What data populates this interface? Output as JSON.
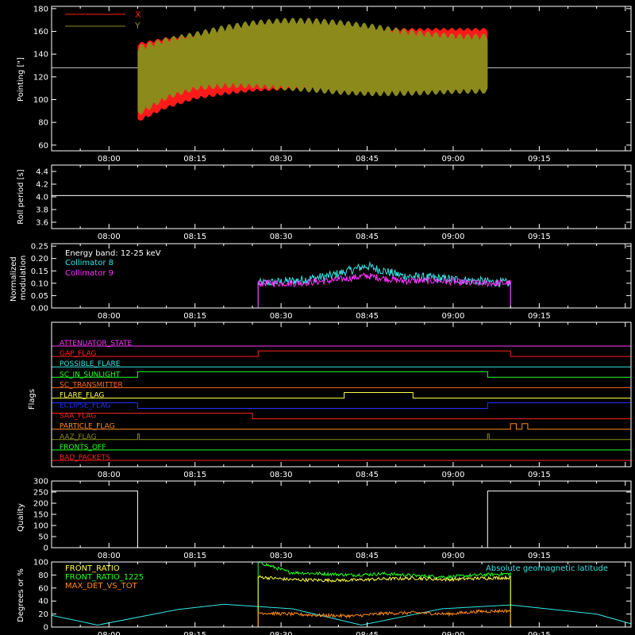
{
  "colors": {
    "background": "#000000",
    "axis": "#ffffff",
    "x_pointing": "#ff1a1a",
    "y_pointing": "#8b8a1b",
    "cyan": "#33e6e6",
    "magenta": "#ff33ff",
    "green": "#22ff22",
    "yellow": "#ffff44",
    "orange": "#ff8c1a"
  },
  "time_axis": {
    "tick_labels": [
      "08:00",
      "08:15",
      "08:30",
      "08:45",
      "09:00",
      "09:15"
    ]
  },
  "chart_data": [
    {
      "type": "line",
      "id": "pointing",
      "ylabel": "Pointing [\"]",
      "ylim": [
        55,
        182
      ],
      "yticks": [
        60,
        80,
        100,
        120,
        140,
        160,
        180
      ],
      "legend_placement": "top-left",
      "series": [
        {
          "name": "X",
          "color_key": "x_pointing",
          "start": "08:05",
          "end": "09:06",
          "upper_envelope": [
            150,
            155,
            158,
            161,
            162,
            163,
            163,
            163,
            163,
            163,
            163,
            163,
            163
          ],
          "lower_envelope": [
            80,
            92,
            100,
            104,
            107,
            108,
            108,
            108,
            108,
            108,
            108,
            108,
            108
          ]
        },
        {
          "name": "Y",
          "color_key": "y_pointing",
          "start": "08:05",
          "end": "09:06",
          "upper_envelope": [
            148,
            155,
            160,
            166,
            170,
            172,
            172,
            170,
            167,
            163,
            160,
            158,
            158
          ],
          "lower_envelope": [
            85,
            100,
            108,
            110,
            110,
            108,
            106,
            104,
            103,
            103,
            104,
            105,
            105
          ]
        }
      ],
      "reference_line": 128
    },
    {
      "type": "line",
      "id": "roll-period",
      "ylabel": "Roll period [s]",
      "ylim": [
        3.5,
        4.5
      ],
      "yticks": [
        3.6,
        3.8,
        4.0,
        4.2,
        4.4
      ],
      "series": [
        {
          "value": 4.02
        }
      ]
    },
    {
      "type": "line",
      "id": "modulation",
      "ylabel": "Normalized modulation",
      "ylim": [
        0,
        0.26
      ],
      "yticks": [
        0.0,
        0.05,
        0.1,
        0.15,
        0.2,
        0.25
      ],
      "legend_placement": "top-left",
      "annotation": "Energy band: 12-25 keV",
      "series": [
        {
          "name": "Collimator 8",
          "color_key": "cyan",
          "start": "08:26",
          "end": "09:10",
          "mean": [
            0.1,
            0.11,
            0.13,
            0.17,
            0.13,
            0.12,
            0.11,
            0.1
          ],
          "jitter": 0.018
        },
        {
          "name": "Collimator 9",
          "color_key": "magenta",
          "start": "08:26",
          "end": "09:10",
          "mean": [
            0.1,
            0.1,
            0.11,
            0.13,
            0.11,
            0.11,
            0.1,
            0.1
          ],
          "jitter": 0.014
        }
      ]
    },
    {
      "type": "line",
      "id": "flags",
      "ylabel": "Flags",
      "series": [
        {
          "name": "ATTENUATOR_STATE",
          "color": "#ff33ff",
          "steps": []
        },
        {
          "name": "GAP_FLAG",
          "color": "#ff2222",
          "steps": [
            [
              "08:26",
              "09:10"
            ]
          ]
        },
        {
          "name": "POSSIBLE_FLARE",
          "color": "#33e6e6",
          "steps": []
        },
        {
          "name": "SC_IN_SUNLIGHT",
          "color": "#22ff22",
          "steps": [
            [
              "08:05",
              "09:06"
            ]
          ]
        },
        {
          "name": "SC_TRANSMITTER",
          "color": "#ff6a1a",
          "steps": []
        },
        {
          "name": "FLARE_FLAG",
          "color": "#ffff44",
          "steps": [
            [
              "08:41",
              "08:53"
            ]
          ]
        },
        {
          "name": "ECLIPSE_FLAG",
          "color": "#2233ff",
          "invert": true,
          "steps": [
            [
              "08:05",
              "09:06"
            ]
          ]
        },
        {
          "name": "SAA_FLAG",
          "color": "#ff2222",
          "steps": [
            [
              "07:50",
              "08:25"
            ]
          ]
        },
        {
          "name": "PARTICLE_FLAG",
          "color": "#ff8c1a",
          "steps": [
            [
              "09:10",
              "09:11"
            ],
            [
              "09:12",
              "09:13"
            ]
          ]
        },
        {
          "name": "AAZ_FLAG",
          "color": "#8b8a1b",
          "steps": [
            [
              "08:05",
              "08:05"
            ],
            [
              "09:06",
              "09:06"
            ]
          ]
        },
        {
          "name": "FRONTS_OFF",
          "color": "#22ff22",
          "steps": []
        },
        {
          "name": "BAD_PACKETS",
          "color": "#ff2222",
          "steps": []
        }
      ]
    },
    {
      "type": "line",
      "id": "quality",
      "ylabel": "Quality",
      "ylim": [
        0,
        300
      ],
      "yticks": [
        0,
        50,
        100,
        150,
        200,
        250,
        300
      ],
      "series": [
        {
          "name": "quality",
          "high": 255,
          "low": 0,
          "low_start": "08:05",
          "low_end": "09:06"
        }
      ]
    },
    {
      "type": "line",
      "id": "ratios",
      "ylabel": "Degrees or %",
      "ylim": [
        0,
        100
      ],
      "yticks": [
        0,
        20,
        40,
        60,
        80,
        100
      ],
      "legend_placement": "top-left",
      "annotation": "Absolute geomagnetic latitude",
      "series": [
        {
          "name": "FRONT_RATIO",
          "color_key": "yellow",
          "start": "08:26",
          "end": "09:10",
          "level": [
            77,
            73,
            72,
            72,
            74,
            75,
            73,
            75,
            76
          ]
        },
        {
          "name": "FRONT_RATIO_1225",
          "color_key": "green",
          "start": "08:26",
          "end": "09:10",
          "level": [
            100,
            84,
            82,
            80,
            82,
            79,
            77,
            80,
            82
          ]
        },
        {
          "name": "MAX_DET_VS_TOT",
          "color_key": "orange",
          "start": "08:26",
          "end": "09:10",
          "level": [
            22,
            20,
            18,
            17,
            21,
            22,
            20,
            24,
            25
          ]
        },
        {
          "name": "Absolute geomagnetic latitude",
          "color_key": "cyan",
          "x": [
            "07:50",
            "07:58",
            "08:12",
            "08:20",
            "08:32",
            "08:44",
            "08:58",
            "09:10",
            "09:25",
            "09:31"
          ],
          "y": [
            18,
            3,
            27,
            35,
            28,
            3,
            28,
            34,
            20,
            5
          ]
        }
      ]
    }
  ]
}
